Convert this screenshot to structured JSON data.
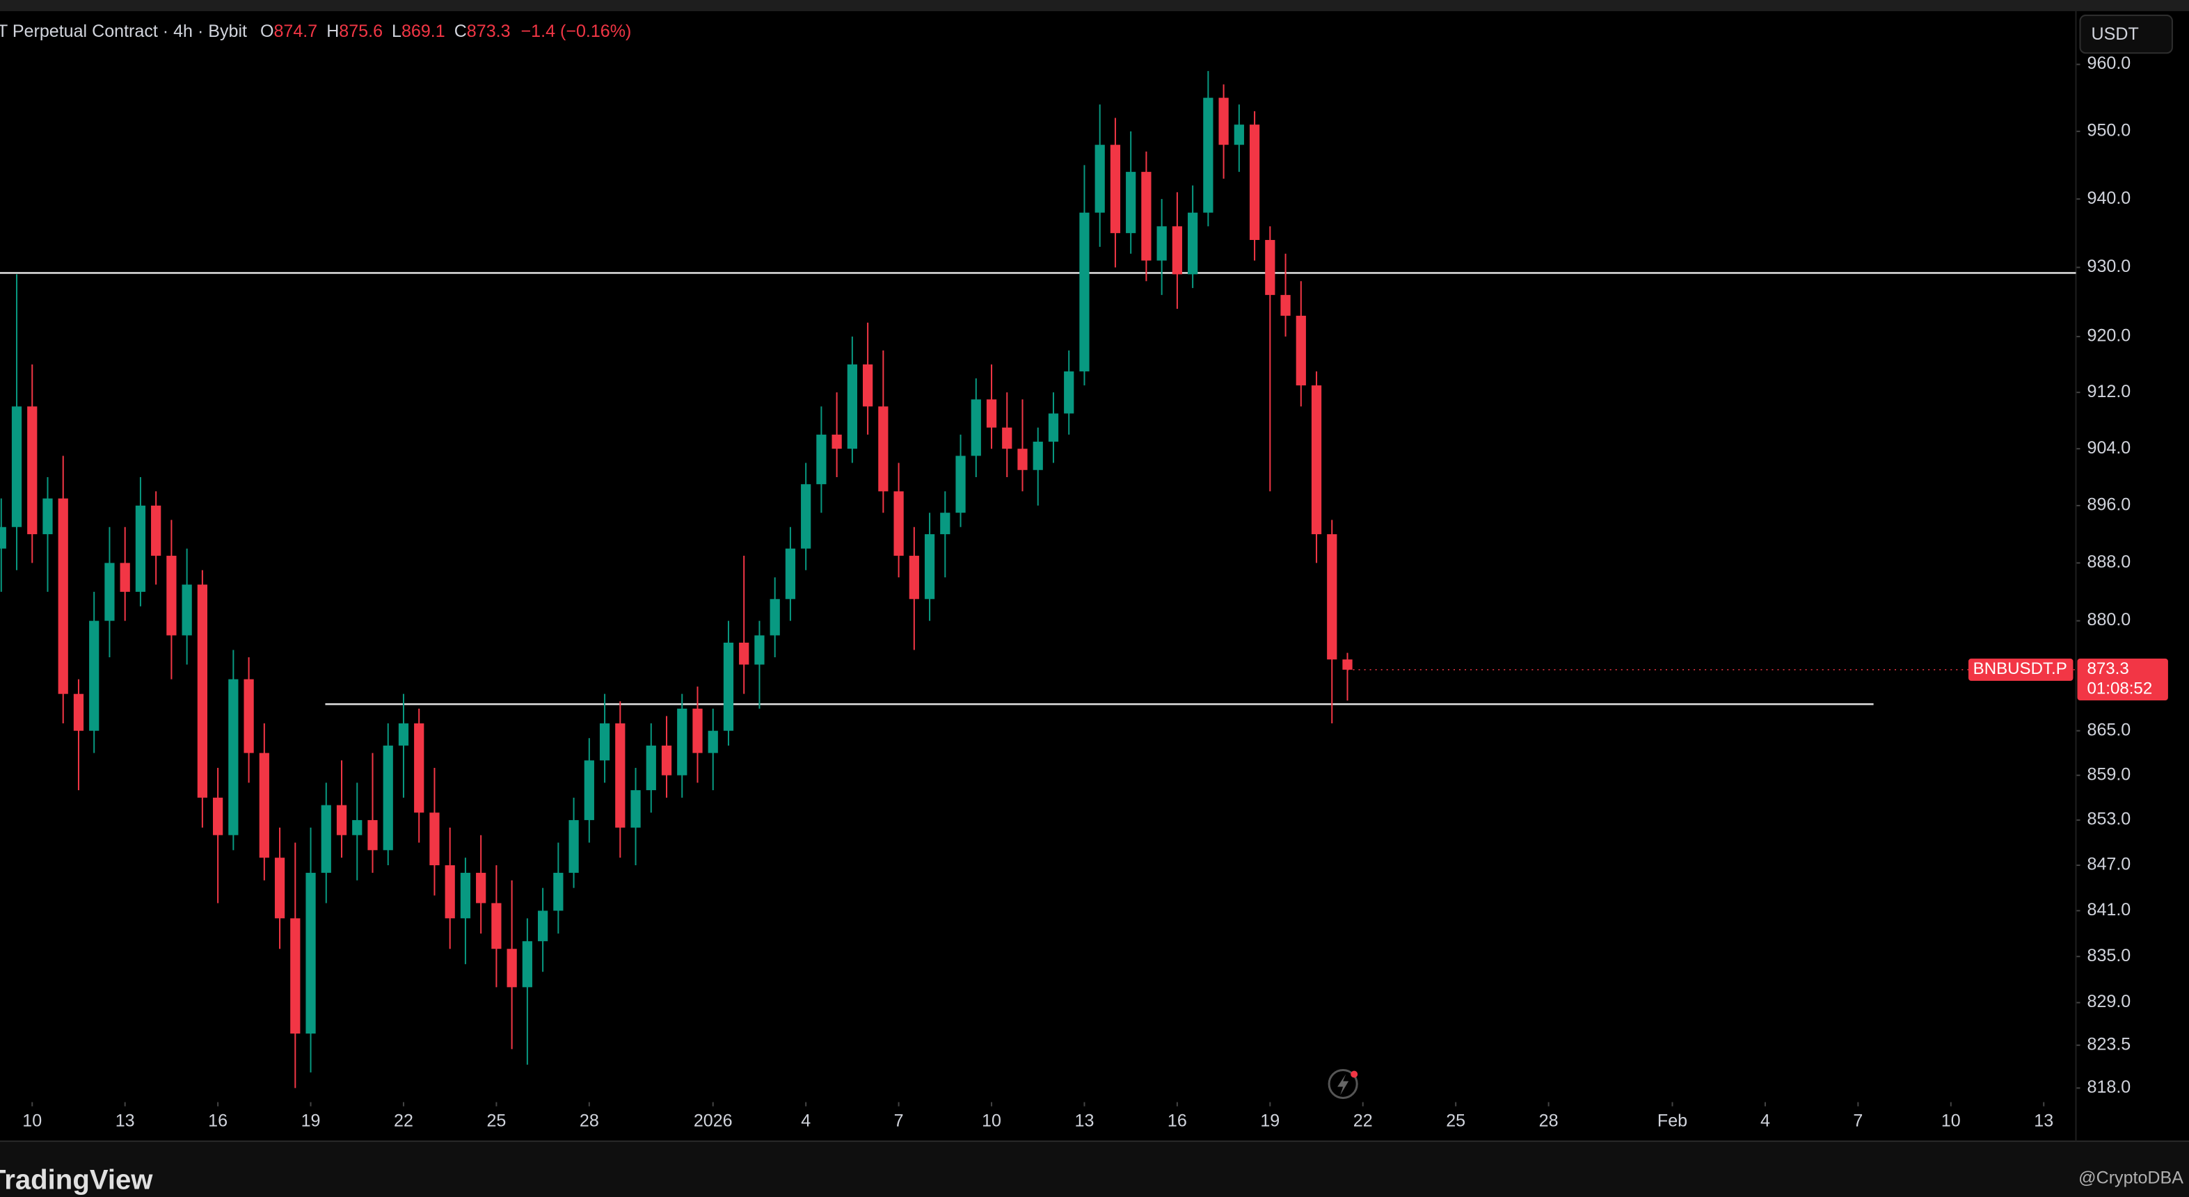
{
  "chart_data": {
    "type": "candlestick",
    "header": {
      "symbol": "T Perpetual Contract · 4h · Bybit",
      "o_label": "O",
      "h_label": "H",
      "l_label": "L",
      "c_label": "C",
      "change": "−1.4 (−0.16%)"
    },
    "currency": "USDT",
    "price_tag": {
      "symbol": "BNBUSDT.P",
      "countdown": "01:08:52"
    },
    "brand": "TradingView",
    "credit": "@CryptoDBA",
    "log_scale": true,
    "up_color": "#089981",
    "down_color": "#f23645",
    "level_color": "#d9d9d9",
    "ylim": [
      816.2,
      967.6
    ],
    "yticks": [
      {
        "value": 960,
        "label": "960.0"
      },
      {
        "value": 950,
        "label": "950.0"
      },
      {
        "value": 940,
        "label": "940.0"
      },
      {
        "value": 930,
        "label": "930.0"
      },
      {
        "value": 920,
        "label": "920.0"
      },
      {
        "value": 912,
        "label": "912.0"
      },
      {
        "value": 904,
        "label": "904.0"
      },
      {
        "value": 896,
        "label": "896.0"
      },
      {
        "value": 888,
        "label": "888.0"
      },
      {
        "value": 880,
        "label": "880.0"
      },
      {
        "value": 865,
        "label": "865.0"
      },
      {
        "value": 859,
        "label": "859.0"
      },
      {
        "value": 853,
        "label": "853.0"
      },
      {
        "value": 847,
        "label": "847.0"
      },
      {
        "value": 841,
        "label": "841.0"
      },
      {
        "value": 835,
        "label": "835.0"
      },
      {
        "value": 829,
        "label": "829.0"
      },
      {
        "value": 823.5,
        "label": "823.5"
      },
      {
        "value": 818,
        "label": "818.0"
      }
    ],
    "xlim": [
      -1.04,
      66.04
    ],
    "xticks": [
      {
        "value": 0,
        "label": "10"
      },
      {
        "value": 3,
        "label": "13"
      },
      {
        "value": 6,
        "label": "16"
      },
      {
        "value": 9,
        "label": "19"
      },
      {
        "value": 12,
        "label": "22"
      },
      {
        "value": 15,
        "label": "25"
      },
      {
        "value": 18,
        "label": "28"
      },
      {
        "value": 22,
        "label": "2026"
      },
      {
        "value": 25,
        "label": "4"
      },
      {
        "value": 28,
        "label": "7"
      },
      {
        "value": 31,
        "label": "10"
      },
      {
        "value": 34,
        "label": "13"
      },
      {
        "value": 37,
        "label": "16"
      },
      {
        "value": 40,
        "label": "19"
      },
      {
        "value": 43,
        "label": "22"
      },
      {
        "value": 46,
        "label": "25"
      },
      {
        "value": 49,
        "label": "28"
      },
      {
        "value": 53,
        "label": "Feb"
      },
      {
        "value": 56,
        "label": "4"
      },
      {
        "value": 59,
        "label": "7"
      },
      {
        "value": 62,
        "label": "10"
      },
      {
        "value": 65,
        "label": "13"
      }
    ],
    "levels": [
      {
        "value": 929.2,
        "x0": -1.04,
        "x1": 66.04
      },
      {
        "value": 868.6,
        "x0": 9.47,
        "x1": 59.5
      }
    ],
    "x": [
      -1,
      -0.5,
      0,
      0.5,
      1,
      1.5,
      2,
      2.5,
      3,
      3.5,
      4,
      4.5,
      5,
      5.5,
      6,
      6.5,
      7,
      7.5,
      8,
      8.5,
      9,
      9.5,
      10,
      10.5,
      11,
      11.5,
      12,
      12.5,
      13,
      13.5,
      14,
      14.5,
      15,
      15.5,
      16,
      16.5,
      17,
      17.5,
      18,
      18.5,
      19,
      19.5,
      20,
      20.5,
      21,
      21.5,
      22,
      22.5,
      23,
      23.5,
      24,
      24.5,
      25,
      25.5,
      26,
      26.5,
      27,
      27.5,
      28,
      28.5,
      29,
      29.5,
      30,
      30.5,
      31,
      31.5,
      32,
      32.5,
      33,
      33.5,
      34,
      34.5,
      35,
      35.5,
      36,
      36.5,
      37,
      37.5,
      38,
      38.5,
      39,
      39.5,
      40,
      40.5,
      41,
      41.5,
      42,
      42.5
    ],
    "open": [
      890,
      893,
      910,
      892,
      897,
      870,
      865,
      880,
      888,
      884,
      896,
      889,
      878,
      885,
      856,
      851,
      872,
      862,
      848,
      840,
      825,
      846,
      855,
      851,
      853,
      849,
      863,
      866,
      854,
      847,
      840,
      846,
      842,
      836,
      831,
      837,
      841,
      846,
      853,
      861,
      866,
      852,
      857,
      863,
      859,
      868,
      862,
      865,
      877,
      874,
      878,
      883,
      890,
      899,
      906,
      904,
      916,
      910,
      898,
      889,
      883,
      892,
      895,
      903,
      911,
      907,
      904,
      901,
      905,
      909,
      915,
      938,
      948,
      935,
      944,
      931,
      936,
      929,
      938,
      955,
      948,
      951,
      934,
      926,
      923,
      913,
      892,
      874.7
    ],
    "high": [
      897,
      929,
      916,
      900,
      903,
      872,
      884,
      893,
      893,
      900,
      898,
      894,
      890,
      887,
      860,
      876,
      875,
      866,
      852,
      850,
      852,
      858,
      861,
      858,
      862,
      866,
      870,
      868,
      860,
      852,
      848,
      851,
      847,
      845,
      840,
      844,
      850,
      856,
      864,
      870,
      869,
      860,
      866,
      867,
      870,
      871,
      868,
      880,
      889,
      880,
      886,
      893,
      902,
      910,
      912,
      920,
      922,
      918,
      902,
      893,
      895,
      898,
      906,
      914,
      916,
      912,
      911,
      907,
      912,
      918,
      945,
      954,
      952,
      950,
      947,
      940,
      941,
      942,
      959,
      957,
      954,
      953,
      936,
      932,
      928,
      915,
      894,
      875.6
    ],
    "low": [
      884,
      887,
      888,
      884,
      866,
      857,
      862,
      875,
      880,
      882,
      885,
      872,
      874,
      852,
      842,
      849,
      858,
      845,
      836,
      818,
      820,
      842,
      848,
      845,
      846,
      847,
      856,
      850,
      843,
      836,
      834,
      838,
      831,
      823,
      821,
      833,
      838,
      844,
      850,
      858,
      848,
      847,
      854,
      856,
      856,
      858,
      857,
      863,
      870,
      868,
      875,
      880,
      887,
      895,
      900,
      902,
      906,
      895,
      886,
      876,
      880,
      886,
      893,
      900,
      904,
      900,
      898,
      896,
      902,
      906,
      913,
      933,
      930,
      932,
      928,
      926,
      924,
      927,
      936,
      943,
      944,
      931,
      898,
      920,
      910,
      888,
      866,
      869.1
    ],
    "close": [
      893,
      910,
      892,
      897,
      870,
      865,
      880,
      888,
      884,
      896,
      889,
      878,
      885,
      856,
      851,
      872,
      862,
      848,
      840,
      825,
      846,
      855,
      851,
      853,
      849,
      863,
      866,
      854,
      847,
      840,
      846,
      842,
      836,
      831,
      837,
      841,
      846,
      853,
      861,
      866,
      852,
      857,
      863,
      859,
      868,
      862,
      865,
      877,
      874,
      878,
      883,
      890,
      899,
      906,
      904,
      916,
      910,
      898,
      889,
      883,
      892,
      895,
      903,
      911,
      907,
      904,
      901,
      905,
      909,
      915,
      938,
      948,
      935,
      944,
      931,
      936,
      929,
      938,
      955,
      948,
      951,
      934,
      926,
      923,
      913,
      892,
      874.7,
      873.3
    ]
  }
}
